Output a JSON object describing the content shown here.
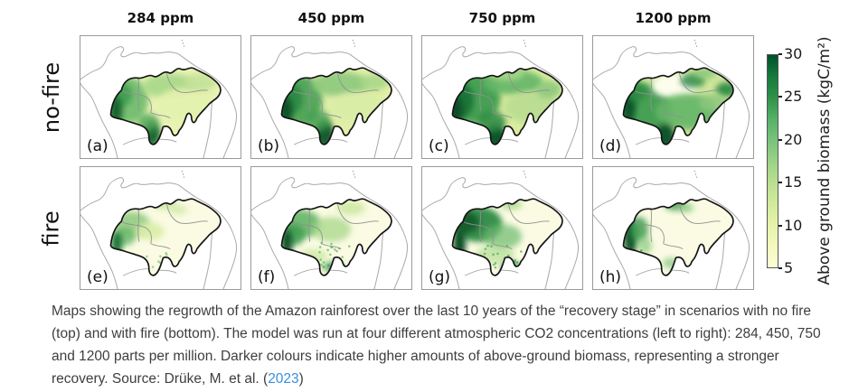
{
  "figure": {
    "column_titles": [
      "284 ppm",
      "450 ppm",
      "750 ppm",
      "1200 ppm"
    ],
    "row_labels": [
      "no-fire",
      "fire"
    ],
    "panel_letters": [
      "(a)",
      "(b)",
      "(c)",
      "(d)",
      "(e)",
      "(f)",
      "(g)",
      "(h)"
    ],
    "colorbar": {
      "label": "Above ground biomass (kgC/m²)",
      "ticks": [
        "30",
        "25",
        "20",
        "15",
        "10",
        "5"
      ]
    }
  },
  "caption": {
    "text_before_link": "Maps showing the regrowth of the Amazon rainforest over the last 10 years of the “recovery stage” in scenarios with no fire (top) and with fire (bottom). The model was run at four different atmospheric CO2 concentrations (left to right): 284, 450, 750 and 1200 parts per million. Darker colours indicate higher amounts of above-ground biomass, representing a stronger recovery. Source: Drüke, M. et al. (",
    "link_text": "2023",
    "text_after_link": ")"
  },
  "chart_data": {
    "type": "heatmap",
    "subtype": "faceted-map-grid",
    "title": "Amazon rainforest above-ground biomass after 10-year recovery stage",
    "rows": [
      "no-fire",
      "fire"
    ],
    "columns": [
      "284 ppm",
      "450 ppm",
      "750 ppm",
      "1200 ppm"
    ],
    "columns_co2_ppm": [
      284,
      450,
      750,
      1200
    ],
    "colorbar": {
      "label": "Above ground biomass (kgC/m²)",
      "ticks": [
        5,
        10,
        15,
        20,
        25,
        30
      ],
      "range": [
        5,
        30
      ],
      "colormap": "YlGn",
      "low_color": "#fdfdd6",
      "high_color": "#004f28"
    },
    "panels": [
      {
        "id": "a",
        "row": "no-fire",
        "co2_ppm": 284,
        "pattern": "moderate biomass basin-wide; highest (~25-30) along western Andean edge and southern tongue; pale (~5-12) centre-east"
      },
      {
        "id": "b",
        "row": "no-fire",
        "co2_ppm": 450,
        "pattern": "higher overall than (a); dark green (~30) west edge and south tongue; medium north-west; pale east"
      },
      {
        "id": "c",
        "row": "no-fire",
        "co2_ppm": 750,
        "pattern": "widespread high biomass; dark west and north-west; medium centre; lighter east"
      },
      {
        "id": "d",
        "row": "no-fire",
        "co2_ppm": 1200,
        "pattern": "high biomass centre/east and dark west edge; distinct low/near-white patch in north-centre"
      },
      {
        "id": "e",
        "row": "fire",
        "co2_ppm": 284,
        "pattern": "mostly low (~5); moderate green patch north-west; small dark strip on west edge"
      },
      {
        "id": "f",
        "row": "fire",
        "co2_ppm": 450,
        "pattern": "low east; larger green north-west area, dark west edge strip, speckled centre, green bits on southern edge"
      },
      {
        "id": "g",
        "row": "fire",
        "co2_ppm": 750,
        "pattern": "high biomass north-west quadrant extending to centre; speckled centre-south; low east"
      },
      {
        "id": "h",
        "row": "fire",
        "co2_ppm": 1200,
        "pattern": "mostly low; narrow dark strip along western edge with speckles trailing south-east; small green patch top-centre"
      }
    ]
  }
}
